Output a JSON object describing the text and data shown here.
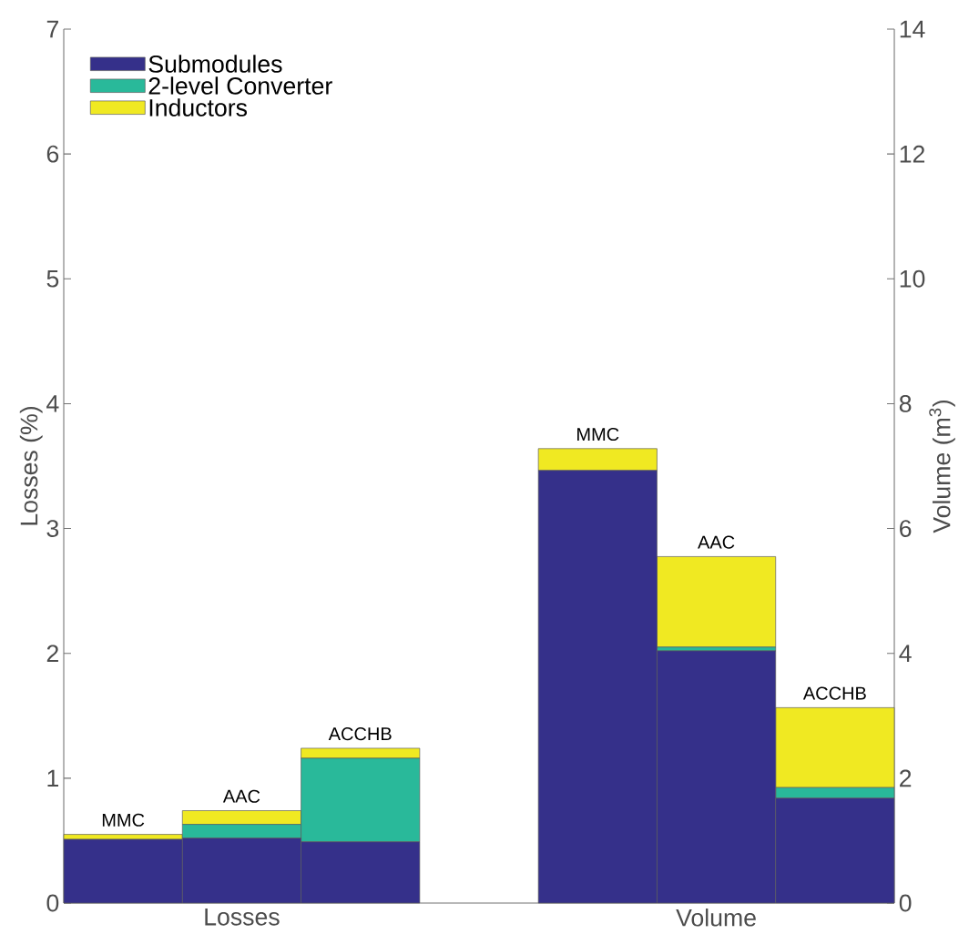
{
  "chart_data": {
    "type": "bar",
    "stacked": true,
    "categories": [
      "MMC",
      "AAC",
      "ACCHB",
      null,
      "MMC",
      "AAC",
      "ACCHB"
    ],
    "ylabel": "Losses (%)",
    "y2label": "Volume (m$^{3}$)",
    "ylim": [
      0,
      7
    ],
    "yticks": [
      0,
      1,
      2,
      3,
      4,
      5,
      6,
      7
    ],
    "y2lim": [
      0,
      14
    ],
    "y2ticks": [
      0,
      2,
      4,
      6,
      8,
      10,
      12,
      14
    ],
    "series": [
      {
        "name": "Submodules",
        "color": "#35308a",
        "axis": "y",
        "values": [
          0.51,
          0.52,
          0.49,
          null,
          null,
          null,
          null
        ]
      },
      {
        "name": "2-level Converter",
        "color": "#29b99a",
        "axis": "y",
        "values": [
          0,
          0.11,
          0.67,
          null,
          null,
          null,
          null
        ]
      },
      {
        "name": "Inductors",
        "color": "#f0e922",
        "axis": "y",
        "values": [
          0.04,
          0.11,
          0.08,
          null,
          null,
          null,
          null
        ]
      },
      {
        "color": "#35308a",
        "axis": "y2",
        "values": [
          null,
          null,
          null,
          null,
          6.93,
          4.04,
          1.68
        ]
      },
      {
        "color": "#29b99a",
        "axis": "y2",
        "values": [
          null,
          null,
          null,
          null,
          0,
          0.06,
          0.17
        ]
      },
      {
        "color": "#f0e922",
        "axis": "y2",
        "values": [
          null,
          null,
          null,
          null,
          0.35,
          1.45,
          1.28
        ]
      }
    ],
    "annotations": [
      "Losses",
      "Volume"
    ],
    "legend": "top left",
    "grid": false
  }
}
